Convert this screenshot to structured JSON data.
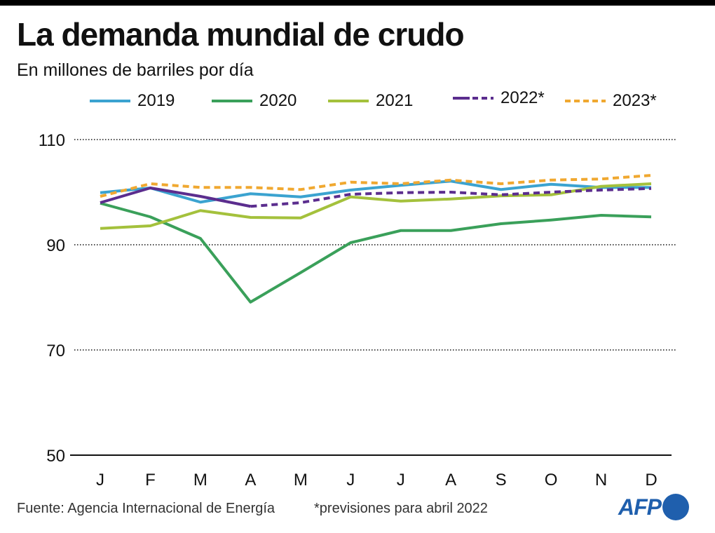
{
  "header": {
    "title": "La demanda mundial de crudo",
    "subtitle": "En millones de barriles por día"
  },
  "footer": {
    "source": "Fuente: Agencia Internacional de Energía",
    "note": "*previsiones para abril 2022",
    "logo": "AFP"
  },
  "chart_data": {
    "type": "line",
    "title": "La demanda mundial de crudo",
    "subtitle": "En millones de barriles por día",
    "xlabel": "",
    "ylabel": "",
    "categories": [
      "J",
      "F",
      "M",
      "A",
      "M",
      "J",
      "J",
      "A",
      "S",
      "O",
      "N",
      "D"
    ],
    "ylim": [
      50,
      110
    ],
    "yticks": [
      50,
      70,
      90,
      110
    ],
    "grid": true,
    "legend_position": "top",
    "series": [
      {
        "name": "2019",
        "color": "#3ba3d0",
        "style": "solid",
        "values": [
          99.9,
          100.8,
          98.1,
          99.7,
          99.1,
          100.4,
          101.3,
          102.1,
          100.5,
          101.5,
          100.9,
          100.9
        ]
      },
      {
        "name": "2020",
        "color": "#3aa05a",
        "style": "solid",
        "values": [
          97.9,
          95.3,
          91.2,
          79.1,
          84.7,
          90.4,
          92.7,
          92.7,
          94.0,
          94.7,
          95.6,
          95.3
        ]
      },
      {
        "name": "2021",
        "color": "#a4c13c",
        "style": "solid",
        "values": [
          93.1,
          93.6,
          96.5,
          95.2,
          95.1,
          99.1,
          98.3,
          98.7,
          99.3,
          99.5,
          101.1,
          101.6
        ]
      },
      {
        "name": "2022*",
        "color": "#5b2d8e",
        "style": "solid-then-dashed",
        "forecast_from_index": 3,
        "values": [
          98.0,
          100.8,
          99.2,
          97.3,
          98.0,
          99.6,
          99.9,
          100.0,
          99.5,
          100.0,
          100.4,
          100.7
        ]
      },
      {
        "name": "2023*",
        "color": "#f0a830",
        "style": "dashed",
        "values": [
          99.2,
          101.6,
          100.9,
          100.9,
          100.5,
          101.9,
          101.6,
          102.3,
          101.6,
          102.3,
          102.5,
          103.2
        ]
      }
    ]
  }
}
